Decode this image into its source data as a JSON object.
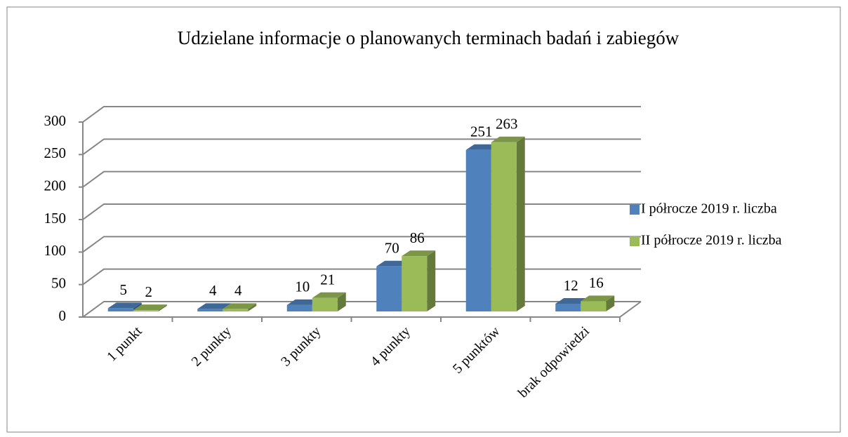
{
  "chart_data": {
    "type": "bar3d",
    "title": "Udzielane informacje o planowanych terminach badań i zabiegów",
    "categories": [
      "1 punkt",
      "2 punkty",
      "3 punkty",
      "4 punkty",
      "5 punktów",
      "brak odpowiedzi"
    ],
    "series": [
      {
        "name": "I półrocze 2019 r. liczba",
        "color": "#4f81bd",
        "values": [
          5,
          4,
          10,
          70,
          251,
          12
        ]
      },
      {
        "name": "II półrocze 2019 r. liczba",
        "color": "#9bbb59",
        "values": [
          2,
          4,
          21,
          86,
          263,
          16
        ]
      }
    ],
    "ylim": [
      0,
      300
    ],
    "yticks": [
      0,
      50,
      100,
      150,
      200,
      250,
      300
    ],
    "grid": true,
    "legend": "right"
  }
}
